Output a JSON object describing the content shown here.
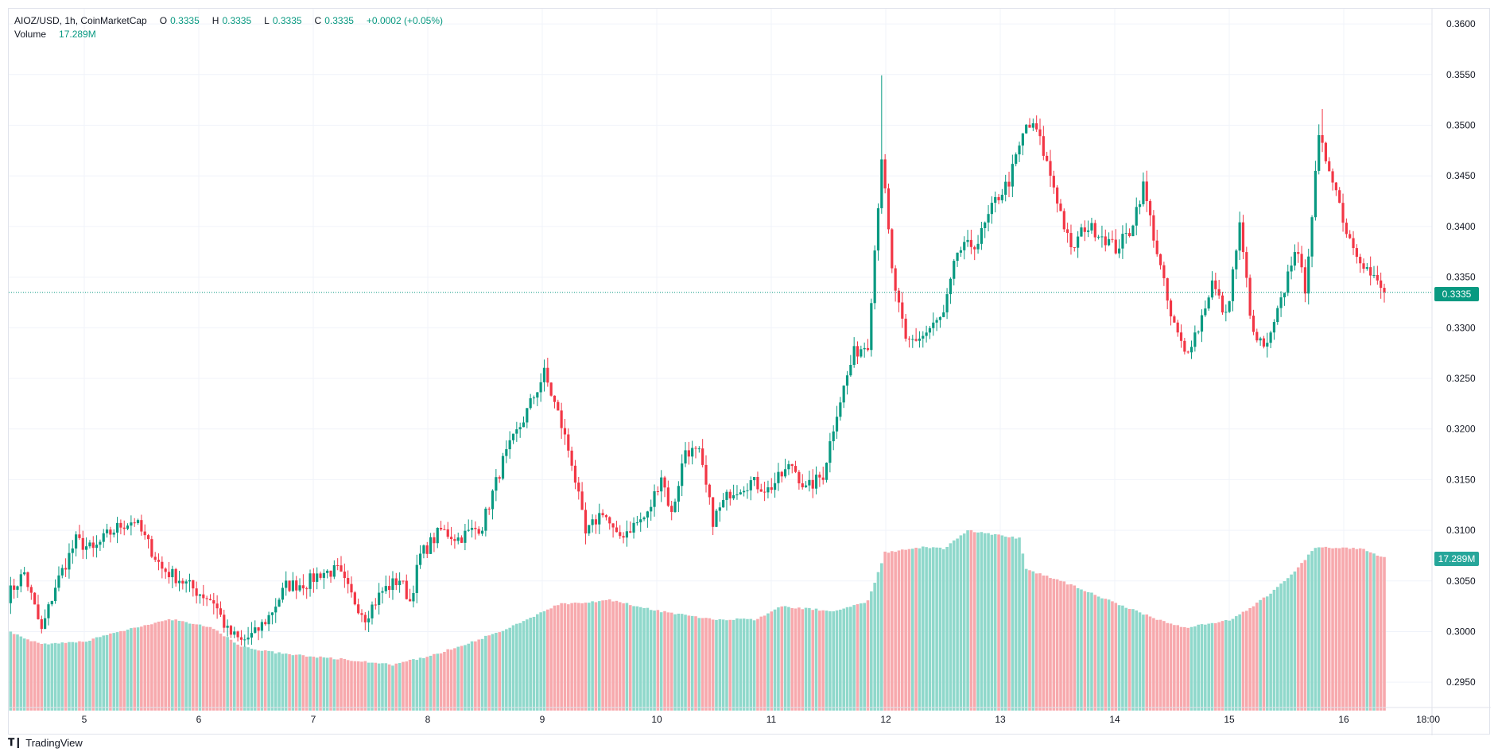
{
  "legend": {
    "symbol": "AIOZ/USD, 1h, CoinMarketCap",
    "open_label": "O",
    "open": "0.3335",
    "high_label": "H",
    "high": "0.3335",
    "low_label": "L",
    "low": "0.3335",
    "close_label": "C",
    "close": "0.3335",
    "change": "+0.0002 (+0.05%)",
    "volume_label": "Volume",
    "volume": "17.289M"
  },
  "price_tag": "0.3335",
  "volume_tag": "17.289M",
  "branding": "TradingView",
  "colors": {
    "up": "#089981",
    "down": "#f23645",
    "vol_up": "#8fd8cb",
    "vol_down": "#f7a9ad",
    "grid": "#f0f3fa",
    "last_line": "#089981"
  },
  "chart_data": {
    "type": "candlestick",
    "title": "AIOZ/USD, 1h, CoinMarketCap",
    "ylim": [
      0.2925,
      0.3615
    ],
    "y_ticks": [
      "0.2950",
      "0.3000",
      "0.3050",
      "0.3100",
      "0.3150",
      "0.3200",
      "0.3250",
      "0.3300",
      "0.3350",
      "0.3400",
      "0.3450",
      "0.3500",
      "0.3550",
      "0.3600"
    ],
    "x_ticks": [
      "5",
      "6",
      "7",
      "8",
      "9",
      "10",
      "11",
      "12",
      "13",
      "14",
      "15",
      "16",
      "18:00"
    ],
    "last_price": 0.3335,
    "grid": true,
    "close_keypoints": [
      [
        0,
        0.3035
      ],
      [
        5,
        0.3058
      ],
      [
        10,
        0.3
      ],
      [
        14,
        0.3045
      ],
      [
        20,
        0.309
      ],
      [
        25,
        0.308
      ],
      [
        29,
        0.3095
      ],
      [
        33,
        0.3105
      ],
      [
        37,
        0.311
      ],
      [
        42,
        0.308
      ],
      [
        45,
        0.3062
      ],
      [
        50,
        0.3052
      ],
      [
        55,
        0.304
      ],
      [
        60,
        0.303
      ],
      [
        64,
        0.3
      ],
      [
        68,
        0.299
      ],
      [
        72,
        0.2998
      ],
      [
        76,
        0.3015
      ],
      [
        81,
        0.3045
      ],
      [
        87,
        0.3048
      ],
      [
        91,
        0.3058
      ],
      [
        96,
        0.306
      ],
      [
        100,
        0.3035
      ],
      [
        104,
        0.3015
      ],
      [
        109,
        0.304
      ],
      [
        114,
        0.3052
      ],
      [
        117,
        0.303
      ],
      [
        120,
        0.3075
      ],
      [
        126,
        0.31
      ],
      [
        131,
        0.3092
      ],
      [
        138,
        0.3105
      ],
      [
        144,
        0.3168
      ],
      [
        150,
        0.321
      ],
      [
        156,
        0.3255
      ],
      [
        160,
        0.3215
      ],
      [
        164,
        0.3168
      ],
      [
        168,
        0.3095
      ],
      [
        173,
        0.312
      ],
      [
        177,
        0.3092
      ],
      [
        182,
        0.3105
      ],
      [
        186,
        0.3115
      ],
      [
        190,
        0.3155
      ],
      [
        193,
        0.3115
      ],
      [
        197,
        0.318
      ],
      [
        201,
        0.3175
      ],
      [
        205,
        0.311
      ],
      [
        210,
        0.3138
      ],
      [
        216,
        0.3148
      ],
      [
        221,
        0.314
      ],
      [
        228,
        0.3165
      ],
      [
        232,
        0.314
      ],
      [
        237,
        0.3155
      ],
      [
        241,
        0.3218
      ],
      [
        246,
        0.3275
      ],
      [
        250,
        0.3285
      ],
      [
        254,
        0.347
      ],
      [
        257,
        0.3355
      ],
      [
        261,
        0.3285
      ],
      [
        266,
        0.3292
      ],
      [
        272,
        0.3312
      ],
      [
        276,
        0.3375
      ],
      [
        282,
        0.3385
      ],
      [
        287,
        0.3425
      ],
      [
        291,
        0.3445
      ],
      [
        296,
        0.35
      ],
      [
        299,
        0.3495
      ],
      [
        304,
        0.344
      ],
      [
        309,
        0.3375
      ],
      [
        313,
        0.34
      ],
      [
        317,
        0.3395
      ],
      [
        322,
        0.3378
      ],
      [
        326,
        0.3395
      ],
      [
        330,
        0.344
      ],
      [
        334,
        0.3375
      ],
      [
        338,
        0.331
      ],
      [
        342,
        0.3275
      ],
      [
        346,
        0.33
      ],
      [
        350,
        0.3345
      ],
      [
        354,
        0.331
      ],
      [
        358,
        0.34
      ],
      [
        362,
        0.329
      ],
      [
        366,
        0.328
      ],
      [
        370,
        0.3325
      ],
      [
        374,
        0.338
      ],
      [
        377,
        0.334
      ],
      [
        381,
        0.3485
      ],
      [
        385,
        0.345
      ],
      [
        389,
        0.3395
      ],
      [
        393,
        0.337
      ],
      [
        396,
        0.3352
      ],
      [
        400,
        0.3335
      ]
    ],
    "volume_keypoints": [
      [
        0,
        0.3001
      ],
      [
        10,
        0.2987
      ],
      [
        22,
        0.299
      ],
      [
        38,
        0.3005
      ],
      [
        48,
        0.3012
      ],
      [
        60,
        0.3003
      ],
      [
        68,
        0.2985
      ],
      [
        80,
        0.2978
      ],
      [
        100,
        0.2972
      ],
      [
        112,
        0.2967
      ],
      [
        125,
        0.2978
      ],
      [
        145,
        0.3002
      ],
      [
        160,
        0.3027
      ],
      [
        175,
        0.3031
      ],
      [
        190,
        0.302
      ],
      [
        205,
        0.3012
      ],
      [
        218,
        0.3012
      ],
      [
        225,
        0.3025
      ],
      [
        240,
        0.302
      ],
      [
        250,
        0.303
      ],
      [
        255,
        0.3078
      ],
      [
        266,
        0.3083
      ],
      [
        272,
        0.3082
      ],
      [
        279,
        0.31
      ],
      [
        294,
        0.3092
      ],
      [
        296,
        0.3062
      ],
      [
        310,
        0.3045
      ],
      [
        324,
        0.3025
      ],
      [
        336,
        0.301
      ],
      [
        342,
        0.3004
      ],
      [
        356,
        0.3012
      ],
      [
        366,
        0.3035
      ],
      [
        374,
        0.306
      ],
      [
        380,
        0.3083
      ],
      [
        393,
        0.3082
      ],
      [
        400,
        0.3073
      ]
    ]
  }
}
